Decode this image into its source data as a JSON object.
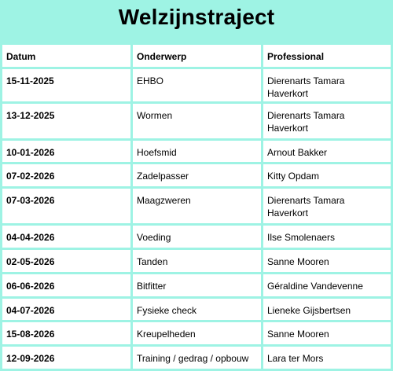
{
  "title": "Welzijnstraject",
  "columns": [
    "Datum",
    "Onderwerp",
    "Professional"
  ],
  "rows": [
    {
      "datum": "15-11-2025",
      "onderwerp": "EHBO",
      "professional": "Dierenarts Tamara Haverkort"
    },
    {
      "datum": "13-12-2025",
      "onderwerp": "Wormen",
      "professional": "Dierenarts Tamara Haverkort"
    },
    {
      "datum": "10-01-2026",
      "onderwerp": "Hoefsmid",
      "professional": "Arnout Bakker"
    },
    {
      "datum": "07-02-2026",
      "onderwerp": "Zadelpasser",
      "professional": "Kitty Opdam"
    },
    {
      "datum": "07-03-2026",
      "onderwerp": "Maagzweren",
      "professional": "Dierenarts Tamara Haverkort"
    },
    {
      "datum": "04-04-2026",
      "onderwerp": "Voeding",
      "professional": "Ilse Smolenaers"
    },
    {
      "datum": "02-05-2026",
      "onderwerp": "Tanden",
      "professional": "Sanne Mooren"
    },
    {
      "datum": "06-06-2026",
      "onderwerp": "Bitfitter",
      "professional": "Géraldine Vandevenne"
    },
    {
      "datum": "04-07-2026",
      "onderwerp": "Fysieke check",
      "professional": "Lieneke Gijsbertsen"
    },
    {
      "datum": "15-08-2026",
      "onderwerp": "Kreupelheden",
      "professional": "Sanne Mooren"
    },
    {
      "datum": "12-09-2026",
      "onderwerp": "Training / gedrag / opbouw",
      "professional": "Lara ter Mors"
    }
  ],
  "colors": {
    "background": "#9ef3e4",
    "cell": "#ffffff"
  }
}
